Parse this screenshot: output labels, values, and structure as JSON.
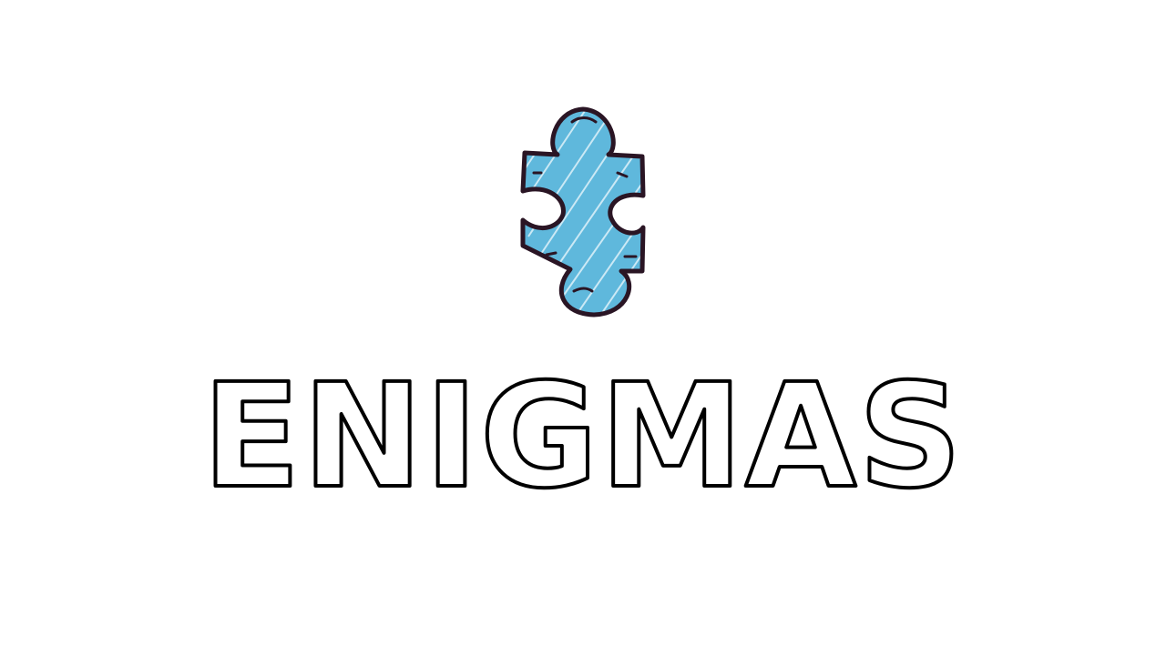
{
  "title": "ENIGMAS",
  "logo_icon": "puzzle-piece-icon",
  "colors": {
    "background": "#ffffff",
    "puzzle_fill": "#5fb8dc",
    "puzzle_outline": "#2a1524",
    "title_fill": "#ffffff",
    "title_outline": "#000000"
  }
}
